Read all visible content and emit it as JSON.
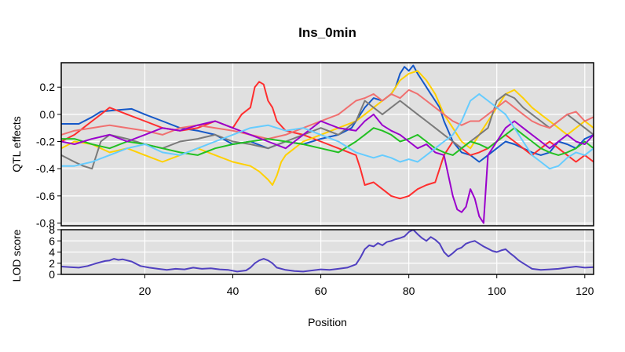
{
  "chart_data": [
    {
      "type": "line",
      "title": "Ins_0min",
      "ylabel": "QTL effects",
      "xlabel": "",
      "xlim": [
        1,
        122
      ],
      "ylim": [
        -0.82,
        0.38
      ],
      "yticks": [
        0.2,
        0.0,
        -0.2,
        -0.4,
        -0.6,
        -0.8
      ],
      "ytick_labels": [
        "0.2",
        "0.0",
        "-0.2",
        "-0.4",
        "-0.6",
        "-0.8"
      ],
      "grid": true,
      "background": "#e0e0e0",
      "series": [
        {
          "color": "#1558c8",
          "x": [
            1,
            5,
            8,
            10,
            13,
            17,
            20,
            24,
            28,
            32,
            36,
            40,
            44,
            48,
            52,
            56,
            60,
            64,
            67,
            68,
            70,
            72,
            74,
            76,
            77,
            78,
            79,
            80,
            81,
            82,
            83,
            84,
            85,
            86,
            87,
            88,
            90,
            92,
            94,
            96,
            98,
            100,
            102,
            104,
            106,
            108,
            110,
            112,
            114,
            116,
            118,
            120,
            122
          ],
          "y": [
            -0.07,
            -0.07,
            -0.02,
            0.02,
            0.03,
            0.04,
            0.0,
            -0.05,
            -0.1,
            -0.12,
            -0.15,
            -0.22,
            -0.2,
            -0.25,
            -0.2,
            -0.22,
            -0.18,
            -0.15,
            -0.1,
            -0.05,
            0.05,
            0.12,
            0.1,
            0.15,
            0.2,
            0.3,
            0.35,
            0.32,
            0.36,
            0.3,
            0.25,
            0.2,
            0.15,
            0.1,
            0.05,
            -0.05,
            -0.2,
            -0.28,
            -0.3,
            -0.35,
            -0.3,
            -0.25,
            -0.2,
            -0.22,
            -0.25,
            -0.28,
            -0.3,
            -0.28,
            -0.2,
            -0.22,
            -0.25,
            -0.18,
            -0.15
          ]
        },
        {
          "color": "#ff2e2e",
          "x": [
            1,
            4,
            6,
            8,
            10,
            12,
            16,
            20,
            24,
            28,
            32,
            36,
            40,
            42,
            44,
            45,
            46,
            47,
            48,
            49,
            50,
            52,
            56,
            60,
            64,
            68,
            69,
            70,
            72,
            74,
            76,
            78,
            80,
            82,
            84,
            86,
            88,
            90,
            92,
            94,
            96,
            98,
            100,
            102,
            104,
            106,
            108,
            110,
            112,
            114,
            116,
            118,
            120,
            122
          ],
          "y": [
            -0.2,
            -0.15,
            -0.1,
            -0.05,
            0.0,
            0.05,
            0.0,
            -0.05,
            -0.1,
            -0.12,
            -0.1,
            -0.05,
            -0.1,
            0.0,
            0.05,
            0.2,
            0.24,
            0.22,
            0.1,
            0.05,
            -0.05,
            -0.12,
            -0.15,
            -0.2,
            -0.25,
            -0.3,
            -0.4,
            -0.52,
            -0.5,
            -0.55,
            -0.6,
            -0.62,
            -0.6,
            -0.55,
            -0.52,
            -0.5,
            -0.3,
            -0.2,
            -0.25,
            -0.3,
            -0.28,
            -0.25,
            -0.2,
            -0.15,
            -0.2,
            -0.25,
            -0.3,
            -0.25,
            -0.2,
            -0.25,
            -0.3,
            -0.35,
            -0.3,
            -0.35
          ]
        },
        {
          "color": "#ffd000",
          "x": [
            1,
            4,
            8,
            12,
            16,
            20,
            24,
            28,
            32,
            36,
            40,
            44,
            46,
            48,
            49,
            50,
            51,
            52,
            54,
            56,
            60,
            64,
            68,
            70,
            72,
            74,
            76,
            78,
            80,
            82,
            84,
            86,
            88,
            90,
            92,
            94,
            96,
            98,
            100,
            102,
            104,
            106,
            108,
            110,
            112,
            114,
            116,
            118,
            120,
            122
          ],
          "y": [
            -0.25,
            -0.2,
            -0.22,
            -0.28,
            -0.25,
            -0.3,
            -0.35,
            -0.3,
            -0.25,
            -0.3,
            -0.35,
            -0.38,
            -0.42,
            -0.48,
            -0.52,
            -0.45,
            -0.35,
            -0.3,
            -0.25,
            -0.2,
            -0.15,
            -0.1,
            -0.05,
            0.0,
            0.05,
            0.1,
            0.15,
            0.25,
            0.3,
            0.32,
            0.25,
            0.15,
            0.0,
            -0.1,
            -0.2,
            -0.25,
            -0.15,
            -0.05,
            0.05,
            0.15,
            0.18,
            0.12,
            0.05,
            0.0,
            -0.05,
            -0.1,
            -0.15,
            -0.1,
            -0.05,
            -0.1
          ]
        },
        {
          "color": "#7a7a7a",
          "x": [
            1,
            4,
            6,
            8,
            10,
            12,
            16,
            20,
            24,
            28,
            32,
            36,
            40,
            44,
            48,
            52,
            56,
            60,
            64,
            68,
            70,
            72,
            74,
            76,
            78,
            80,
            82,
            84,
            86,
            88,
            90,
            92,
            94,
            96,
            98,
            100,
            102,
            104,
            106,
            108,
            110,
            112,
            114,
            116,
            118,
            120,
            122
          ],
          "y": [
            -0.3,
            -0.35,
            -0.38,
            -0.4,
            -0.2,
            -0.15,
            -0.18,
            -0.22,
            -0.25,
            -0.2,
            -0.18,
            -0.15,
            -0.2,
            -0.22,
            -0.25,
            -0.2,
            -0.15,
            -0.1,
            -0.15,
            -0.05,
            0.1,
            0.05,
            0.0,
            0.05,
            0.1,
            0.05,
            0.0,
            -0.05,
            -0.1,
            -0.15,
            -0.2,
            -0.25,
            -0.2,
            -0.15,
            -0.1,
            0.1,
            0.15,
            0.12,
            0.05,
            0.0,
            -0.05,
            -0.1,
            -0.05,
            0.0,
            -0.05,
            -0.1,
            -0.15
          ]
        },
        {
          "color": "#f07070",
          "x": [
            1,
            4,
            8,
            12,
            16,
            20,
            24,
            28,
            32,
            36,
            40,
            44,
            48,
            52,
            56,
            60,
            64,
            66,
            68,
            70,
            72,
            74,
            76,
            78,
            80,
            82,
            84,
            86,
            88,
            90,
            92,
            94,
            96,
            98,
            100,
            102,
            104,
            106,
            108,
            110,
            112,
            114,
            116,
            118,
            120,
            122
          ],
          "y": [
            -0.15,
            -0.12,
            -0.1,
            -0.08,
            -0.1,
            -0.12,
            -0.15,
            -0.1,
            -0.08,
            -0.1,
            -0.12,
            -0.15,
            -0.18,
            -0.15,
            -0.1,
            -0.05,
            0.0,
            0.05,
            0.1,
            0.12,
            0.15,
            0.1,
            0.15,
            0.12,
            0.18,
            0.15,
            0.1,
            0.05,
            0.0,
            -0.05,
            -0.08,
            -0.05,
            -0.05,
            0.0,
            0.05,
            0.1,
            0.05,
            0.0,
            -0.05,
            -0.08,
            -0.1,
            -0.05,
            0.0,
            0.02,
            -0.05,
            -0.02
          ]
        },
        {
          "color": "#22c022",
          "x": [
            1,
            4,
            8,
            12,
            16,
            20,
            24,
            28,
            32,
            36,
            40,
            44,
            48,
            52,
            56,
            60,
            64,
            68,
            70,
            72,
            74,
            76,
            78,
            80,
            82,
            84,
            86,
            88,
            90,
            92,
            94,
            96,
            98,
            100,
            102,
            104,
            106,
            108,
            110,
            112,
            114,
            116,
            118,
            120,
            122
          ],
          "y": [
            -0.18,
            -0.18,
            -0.22,
            -0.25,
            -0.2,
            -0.22,
            -0.25,
            -0.28,
            -0.3,
            -0.25,
            -0.22,
            -0.2,
            -0.18,
            -0.2,
            -0.22,
            -0.25,
            -0.28,
            -0.2,
            -0.15,
            -0.1,
            -0.12,
            -0.15,
            -0.2,
            -0.18,
            -0.15,
            -0.2,
            -0.25,
            -0.28,
            -0.3,
            -0.25,
            -0.2,
            -0.22,
            -0.25,
            -0.2,
            -0.15,
            -0.1,
            -0.15,
            -0.2,
            -0.25,
            -0.28,
            -0.3,
            -0.28,
            -0.25,
            -0.2,
            -0.25
          ]
        },
        {
          "color": "#9a00cc",
          "x": [
            1,
            4,
            8,
            12,
            16,
            20,
            24,
            28,
            32,
            36,
            40,
            44,
            48,
            52,
            56,
            60,
            64,
            68,
            70,
            72,
            74,
            76,
            78,
            80,
            82,
            84,
            86,
            88,
            89,
            90,
            91,
            92,
            93,
            94,
            95,
            96,
            97,
            98,
            100,
            102,
            104,
            106,
            108,
            110,
            112,
            114,
            116,
            118,
            120,
            122
          ],
          "y": [
            -0.2,
            -0.22,
            -0.18,
            -0.15,
            -0.2,
            -0.15,
            -0.1,
            -0.12,
            -0.08,
            -0.05,
            -0.1,
            -0.15,
            -0.2,
            -0.25,
            -0.15,
            -0.05,
            -0.1,
            -0.12,
            -0.05,
            0.0,
            -0.08,
            -0.12,
            -0.15,
            -0.2,
            -0.25,
            -0.22,
            -0.28,
            -0.3,
            -0.45,
            -0.6,
            -0.7,
            -0.72,
            -0.68,
            -0.55,
            -0.62,
            -0.75,
            -0.8,
            -0.3,
            -0.2,
            -0.1,
            -0.05,
            -0.1,
            -0.15,
            -0.2,
            -0.25,
            -0.2,
            -0.15,
            -0.2,
            -0.22,
            -0.15
          ]
        },
        {
          "color": "#66ccff",
          "x": [
            1,
            4,
            8,
            12,
            16,
            20,
            24,
            28,
            32,
            36,
            40,
            44,
            48,
            52,
            56,
            60,
            64,
            68,
            70,
            72,
            74,
            76,
            78,
            80,
            82,
            84,
            86,
            88,
            90,
            92,
            94,
            96,
            98,
            100,
            102,
            104,
            106,
            108,
            110,
            112,
            114,
            116,
            118,
            120,
            122
          ],
          "y": [
            -0.38,
            -0.38,
            -0.35,
            -0.3,
            -0.25,
            -0.22,
            -0.28,
            -0.3,
            -0.25,
            -0.2,
            -0.15,
            -0.1,
            -0.08,
            -0.12,
            -0.1,
            -0.15,
            -0.2,
            -0.28,
            -0.3,
            -0.32,
            -0.3,
            -0.32,
            -0.35,
            -0.33,
            -0.35,
            -0.3,
            -0.25,
            -0.2,
            -0.15,
            -0.05,
            0.1,
            0.15,
            0.1,
            0.05,
            0.0,
            -0.1,
            -0.2,
            -0.3,
            -0.35,
            -0.4,
            -0.38,
            -0.32,
            -0.28,
            -0.3,
            -0.25
          ]
        }
      ]
    },
    {
      "type": "line",
      "title": "",
      "ylabel": "LOD score",
      "xlabel": "Position",
      "xlim": [
        1,
        122
      ],
      "ylim": [
        0,
        8
      ],
      "yticks": [
        0,
        2,
        4,
        6,
        8
      ],
      "ytick_labels": [
        "0",
        "2",
        "4",
        "6",
        "8"
      ],
      "xticks": [
        20,
        40,
        60,
        80,
        100,
        120
      ],
      "xtick_labels": [
        "20",
        "40",
        "60",
        "80",
        "100",
        "120"
      ],
      "grid": true,
      "background": "#e0e0e0",
      "series": [
        {
          "color": "#5040c0",
          "x": [
            1,
            3,
            5,
            7,
            9,
            11,
            12,
            13,
            14,
            15,
            17,
            19,
            21,
            23,
            25,
            27,
            29,
            31,
            33,
            35,
            37,
            39,
            41,
            43,
            44,
            45,
            46,
            47,
            48,
            49,
            50,
            52,
            54,
            56,
            58,
            60,
            62,
            64,
            66,
            68,
            69,
            70,
            71,
            72,
            73,
            74,
            75,
            76,
            77,
            78,
            79,
            80,
            81,
            82,
            83,
            84,
            85,
            86,
            87,
            88,
            89,
            90,
            91,
            92,
            93,
            94,
            95,
            96,
            97,
            98,
            99,
            100,
            101,
            102,
            103,
            104,
            105,
            106,
            107,
            108,
            110,
            112,
            114,
            116,
            118,
            120,
            122
          ],
          "y": [
            1.4,
            1.3,
            1.2,
            1.5,
            2.0,
            2.4,
            2.5,
            2.8,
            2.6,
            2.7,
            2.3,
            1.5,
            1.2,
            1.0,
            0.8,
            1.0,
            0.9,
            1.2,
            1.0,
            1.1,
            0.9,
            0.8,
            0.5,
            0.7,
            1.2,
            2.0,
            2.5,
            2.8,
            2.5,
            2.0,
            1.2,
            0.8,
            0.6,
            0.5,
            0.7,
            0.9,
            0.8,
            1.0,
            1.2,
            1.8,
            3.0,
            4.5,
            5.2,
            5.0,
            5.6,
            5.2,
            5.8,
            6.0,
            6.3,
            6.5,
            6.8,
            7.6,
            8.0,
            7.2,
            6.5,
            6.0,
            6.7,
            6.2,
            5.5,
            4.0,
            3.2,
            3.8,
            4.5,
            4.8,
            5.5,
            5.8,
            6.0,
            5.5,
            5.0,
            4.6,
            4.2,
            4.0,
            4.3,
            4.5,
            3.8,
            3.2,
            2.5,
            2.0,
            1.5,
            1.0,
            0.8,
            0.9,
            1.0,
            1.2,
            1.4,
            1.2,
            1.3
          ]
        }
      ]
    }
  ]
}
